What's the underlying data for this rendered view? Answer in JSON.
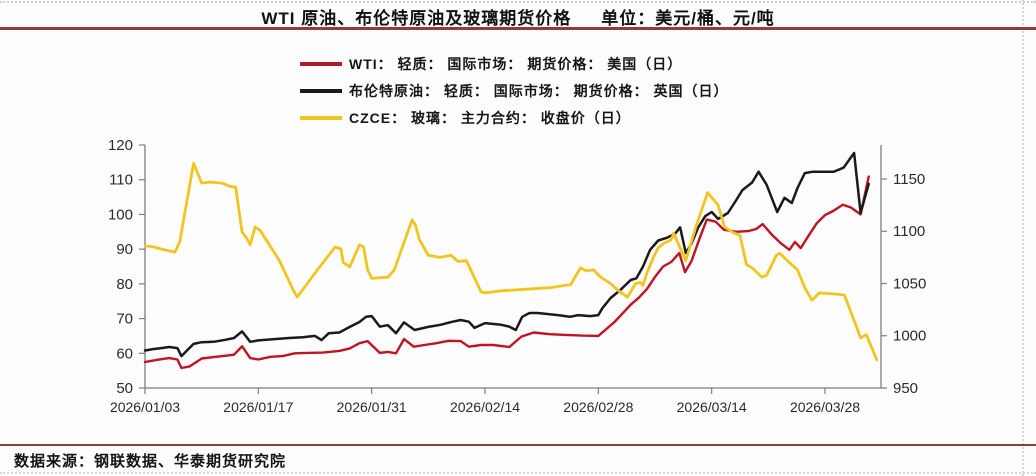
{
  "page": {
    "title_main": "WTI 原油、布伦特原油及玻璃期货价格",
    "title_unit": "单位：美元/桶、元/吨",
    "source": "数据来源：钢联数据、华泰期货研究院"
  },
  "colors": {
    "rule_maroon": "#95393b",
    "wti_red": "#c11322",
    "brent_black": "#1a1a1a",
    "glass_yellow": "#f2c41f",
    "axis_gray": "#7f7f7f"
  },
  "legend": [
    {
      "label": "WTI： 轻质： 国际市场： 期货价格： 美国（日）",
      "color": "#ab1e22"
    },
    {
      "label": "布伦特原油： 轻质： 国际市场： 期货价格： 英国（日）",
      "color": "#1a1a1a"
    },
    {
      "label": "CZCE： 玻璃： 主力合约： 收盘价（日）",
      "color": "#f2c41f"
    }
  ],
  "chart_data": {
    "type": "line",
    "title": "WTI 原油、布伦特原油及玻璃期货价格",
    "units": [
      "美元/桶",
      "元/吨"
    ],
    "grid": false,
    "legend_position": "top-left",
    "x_axis": {
      "kind": "date",
      "tick_days": [
        0,
        14,
        28,
        42,
        56,
        70,
        84
      ],
      "tick_labels": [
        "2026/01/03",
        "2026/01/17",
        "2026/01/31",
        "2026/02/14",
        "2026/02/28",
        "2026/03/14",
        "2026/03/28"
      ],
      "day_span": 91
    },
    "y_left": {
      "min": 50,
      "max": 120,
      "ticks": [
        50,
        60,
        70,
        80,
        90,
        100,
        110,
        120
      ],
      "label": "美元/桶"
    },
    "y_right": {
      "min": 950,
      "max": 1182.5,
      "ticks": [
        950,
        1000,
        1050,
        1100,
        1150
      ],
      "label": "元/吨"
    },
    "series": [
      {
        "name": "WTI： 轻质： 国际市场： 期货价格： 美国（日）",
        "axis": "left",
        "color": "#c11322",
        "width": 2.4,
        "points": [
          [
            0,
            57.5
          ],
          [
            1,
            57.9
          ],
          [
            2,
            58.3
          ],
          [
            3,
            58.6
          ],
          [
            4,
            58.2
          ],
          [
            4.5,
            55.8
          ],
          [
            5.5,
            56.2
          ],
          [
            7,
            58.5
          ],
          [
            8.5,
            58.9
          ],
          [
            10,
            59.3
          ],
          [
            11,
            59.6
          ],
          [
            12,
            62.0
          ],
          [
            13,
            58.6
          ],
          [
            14,
            58.2
          ],
          [
            15.5,
            59.0
          ],
          [
            17,
            59.2
          ],
          [
            18.5,
            60.0
          ],
          [
            20,
            60.1
          ],
          [
            22,
            60.2
          ],
          [
            24,
            60.7
          ],
          [
            25.3,
            61.4
          ],
          [
            26.5,
            62.9
          ],
          [
            27.5,
            63.5
          ],
          [
            29,
            60.1
          ],
          [
            30,
            60.4
          ],
          [
            31,
            60.0
          ],
          [
            32,
            64.1
          ],
          [
            33.2,
            61.9
          ],
          [
            34.5,
            62.4
          ],
          [
            36,
            62.9
          ],
          [
            37.5,
            63.6
          ],
          [
            39,
            63.5
          ],
          [
            40,
            61.9
          ],
          [
            41.5,
            62.4
          ],
          [
            43,
            62.4
          ],
          [
            45,
            61.8
          ],
          [
            46.5,
            64.8
          ],
          [
            48,
            66.0
          ],
          [
            50,
            65.5
          ],
          [
            52,
            65.3
          ],
          [
            54,
            65.1
          ],
          [
            56,
            65.0
          ],
          [
            57,
            67.0
          ],
          [
            58,
            69.0
          ],
          [
            59,
            71.5
          ],
          [
            60,
            74.0
          ],
          [
            61,
            76.0
          ],
          [
            62,
            78.5
          ],
          [
            63,
            82.0
          ],
          [
            64,
            85.0
          ],
          [
            65,
            86.3
          ],
          [
            66,
            88.9
          ],
          [
            66.7,
            83.4
          ],
          [
            67.5,
            86.5
          ],
          [
            68.5,
            93.0
          ],
          [
            69.4,
            98.5
          ],
          [
            70.5,
            97.9
          ],
          [
            71.5,
            95.6
          ],
          [
            73,
            95.0
          ],
          [
            74.5,
            95.2
          ],
          [
            75.5,
            95.8
          ],
          [
            76.3,
            97.2
          ],
          [
            77.5,
            94.0
          ],
          [
            78.5,
            91.8
          ],
          [
            79.6,
            89.8
          ],
          [
            80.3,
            92.1
          ],
          [
            81,
            90.3
          ],
          [
            82,
            94.0
          ],
          [
            83,
            97.5
          ],
          [
            84,
            99.8
          ],
          [
            85,
            101.0
          ],
          [
            86.2,
            102.8
          ],
          [
            87.2,
            102.0
          ],
          [
            88.4,
            100.0
          ],
          [
            89.4,
            110.9
          ]
        ]
      },
      {
        "name": "布伦特原油： 轻质： 国际市场： 期货价格： 英国（日）",
        "axis": "left",
        "color": "#1a1a1a",
        "width": 2.5,
        "points": [
          [
            0,
            60.8
          ],
          [
            1,
            61.2
          ],
          [
            2,
            61.5
          ],
          [
            3,
            61.8
          ],
          [
            4,
            61.5
          ],
          [
            4.5,
            59.2
          ],
          [
            6,
            62.7
          ],
          [
            7,
            63.2
          ],
          [
            8.5,
            63.3
          ],
          [
            10,
            63.9
          ],
          [
            11,
            64.4
          ],
          [
            12,
            66.3
          ],
          [
            13,
            63.3
          ],
          [
            14,
            63.7
          ],
          [
            16,
            64.1
          ],
          [
            17.8,
            64.4
          ],
          [
            19.5,
            64.6
          ],
          [
            21,
            65.0
          ],
          [
            21.8,
            63.8
          ],
          [
            22.7,
            65.8
          ],
          [
            24,
            66.0
          ],
          [
            25.3,
            67.6
          ],
          [
            26.5,
            69.0
          ],
          [
            27.3,
            70.5
          ],
          [
            28,
            70.7
          ],
          [
            29,
            67.7
          ],
          [
            30,
            68.1
          ],
          [
            31,
            65.8
          ],
          [
            32,
            68.9
          ],
          [
            33.3,
            66.7
          ],
          [
            35,
            67.6
          ],
          [
            36.5,
            68.2
          ],
          [
            38,
            69.1
          ],
          [
            39,
            69.6
          ],
          [
            40,
            69.1
          ],
          [
            40.7,
            67.3
          ],
          [
            42,
            68.7
          ],
          [
            44,
            68.2
          ],
          [
            45,
            67.7
          ],
          [
            45.8,
            66.7
          ],
          [
            46.6,
            70.5
          ],
          [
            47.5,
            71.6
          ],
          [
            48.5,
            71.6
          ],
          [
            51,
            71.0
          ],
          [
            52.5,
            70.5
          ],
          [
            53.5,
            71.0
          ],
          [
            55,
            70.7
          ],
          [
            56,
            71.0
          ],
          [
            56.5,
            73.0
          ],
          [
            57.5,
            75.9
          ],
          [
            58.7,
            78.2
          ],
          [
            60,
            81.1
          ],
          [
            60.7,
            81.6
          ],
          [
            61.5,
            84.9
          ],
          [
            62.4,
            89.8
          ],
          [
            63.4,
            92.5
          ],
          [
            64.5,
            93.3
          ],
          [
            65.5,
            94.5
          ],
          [
            66.1,
            96.3
          ],
          [
            66.8,
            88.9
          ],
          [
            67.5,
            91.5
          ],
          [
            68.3,
            96.1
          ],
          [
            69.2,
            99.5
          ],
          [
            70,
            100.7
          ],
          [
            70.8,
            98.7
          ],
          [
            72,
            100.4
          ],
          [
            73,
            104.0
          ],
          [
            73.8,
            107.0
          ],
          [
            75,
            109.2
          ],
          [
            75.8,
            112.3
          ],
          [
            76.8,
            108.5
          ],
          [
            78.1,
            100.7
          ],
          [
            79,
            104.8
          ],
          [
            79.9,
            103.3
          ],
          [
            80.6,
            107.6
          ],
          [
            81.5,
            111.9
          ],
          [
            82.5,
            112.3
          ],
          [
            84,
            112.3
          ],
          [
            85.1,
            112.3
          ],
          [
            86.3,
            113.5
          ],
          [
            87.6,
            117.7
          ],
          [
            88.4,
            100.4
          ],
          [
            89.4,
            108.8
          ]
        ]
      },
      {
        "name": "CZCE： 玻璃： 主力合约： 收盘价（日）",
        "axis": "right",
        "color": "#f2c41f",
        "width": 2.8,
        "points": [
          [
            0,
            1086
          ],
          [
            1,
            1085
          ],
          [
            2.5,
            1082
          ],
          [
            3.7,
            1080
          ],
          [
            4.3,
            1090
          ],
          [
            5.2,
            1130
          ],
          [
            6,
            1165
          ],
          [
            7,
            1146
          ],
          [
            8,
            1147
          ],
          [
            9.5,
            1146
          ],
          [
            10.5,
            1143
          ],
          [
            11.2,
            1142
          ],
          [
            12,
            1099
          ],
          [
            12.5,
            1094
          ],
          [
            13,
            1087
          ],
          [
            13.6,
            1104
          ],
          [
            14.2,
            1101
          ],
          [
            16.6,
            1072
          ],
          [
            18.3,
            1044
          ],
          [
            18.8,
            1037
          ],
          [
            21.3,
            1063
          ],
          [
            23.5,
            1085
          ],
          [
            24.2,
            1083
          ],
          [
            24.5,
            1070
          ],
          [
            25.3,
            1066
          ],
          [
            26.5,
            1087
          ],
          [
            27,
            1085
          ],
          [
            27.5,
            1063
          ],
          [
            28,
            1055
          ],
          [
            30,
            1056
          ],
          [
            30.8,
            1063
          ],
          [
            33,
            1111
          ],
          [
            33.4,
            1106
          ],
          [
            33.9,
            1092
          ],
          [
            35,
            1077
          ],
          [
            36.4,
            1075
          ],
          [
            37.8,
            1077
          ],
          [
            38.7,
            1071
          ],
          [
            39.7,
            1072
          ],
          [
            41.5,
            1042
          ],
          [
            42,
            1041
          ],
          [
            44,
            1043
          ],
          [
            46,
            1044
          ],
          [
            48,
            1045
          ],
          [
            50,
            1046
          ],
          [
            52.6,
            1049
          ],
          [
            53.8,
            1065
          ],
          [
            54.5,
            1062
          ],
          [
            55.4,
            1063
          ],
          [
            56.3,
            1056
          ],
          [
            57.5,
            1050
          ],
          [
            58.5,
            1043
          ],
          [
            59.6,
            1037
          ],
          [
            60.6,
            1050
          ],
          [
            61.2,
            1051
          ],
          [
            61.5,
            1048
          ],
          [
            62,
            1060
          ],
          [
            62.8,
            1075
          ],
          [
            63.4,
            1084
          ],
          [
            64,
            1088
          ],
          [
            65,
            1092
          ],
          [
            65.3,
            1098
          ],
          [
            66.8,
            1072
          ],
          [
            68,
            1103
          ],
          [
            69.5,
            1137
          ],
          [
            70.8,
            1125
          ],
          [
            71.6,
            1104
          ],
          [
            72.6,
            1099
          ],
          [
            73.5,
            1096
          ],
          [
            74.3,
            1068
          ],
          [
            75,
            1065
          ],
          [
            76.2,
            1056
          ],
          [
            76.8,
            1058
          ],
          [
            78,
            1077
          ],
          [
            78.4,
            1079
          ],
          [
            79.6,
            1070
          ],
          [
            80.6,
            1063
          ],
          [
            81.5,
            1046
          ],
          [
            82.4,
            1034
          ],
          [
            83.3,
            1041
          ],
          [
            85,
            1040
          ],
          [
            86.4,
            1039
          ],
          [
            88.4,
            998
          ],
          [
            89.1,
            1001
          ],
          [
            90.4,
            977
          ]
        ]
      }
    ]
  }
}
